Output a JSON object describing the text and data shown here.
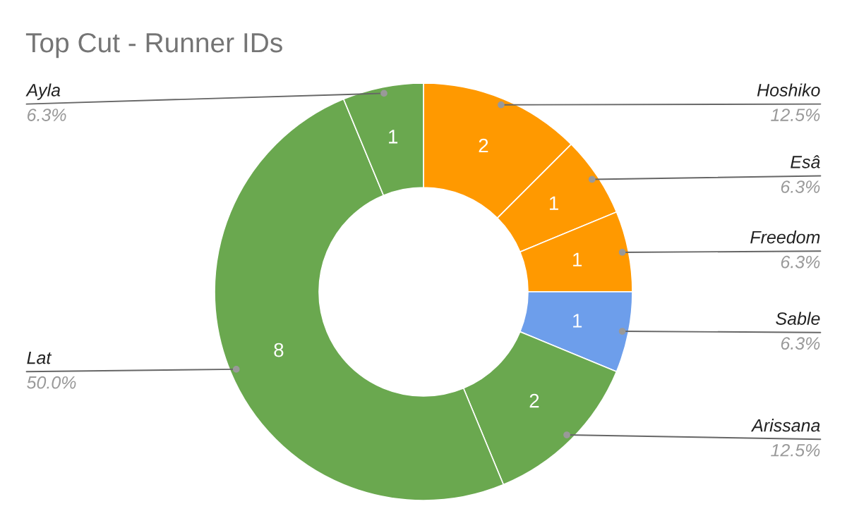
{
  "chart_data": {
    "type": "donut",
    "title": "Top Cut - Runner IDs",
    "categories": [
      "Hoshiko",
      "Esâ",
      "Freedom",
      "Sable",
      "Arissana",
      "Lat",
      "Ayla"
    ],
    "values": [
      2,
      1,
      1,
      1,
      2,
      8,
      1
    ],
    "colors": [
      "#ff9900",
      "#ff9900",
      "#ff9900",
      "#6d9eeb",
      "#6aa84f",
      "#6aa84f",
      "#6aa84f"
    ],
    "data_labels": true,
    "annotations": [
      "12.5%",
      "6.3%",
      "6.3%",
      "6.3%",
      "12.5%",
      "50.0%",
      "6.3%"
    ],
    "legend": false
  }
}
